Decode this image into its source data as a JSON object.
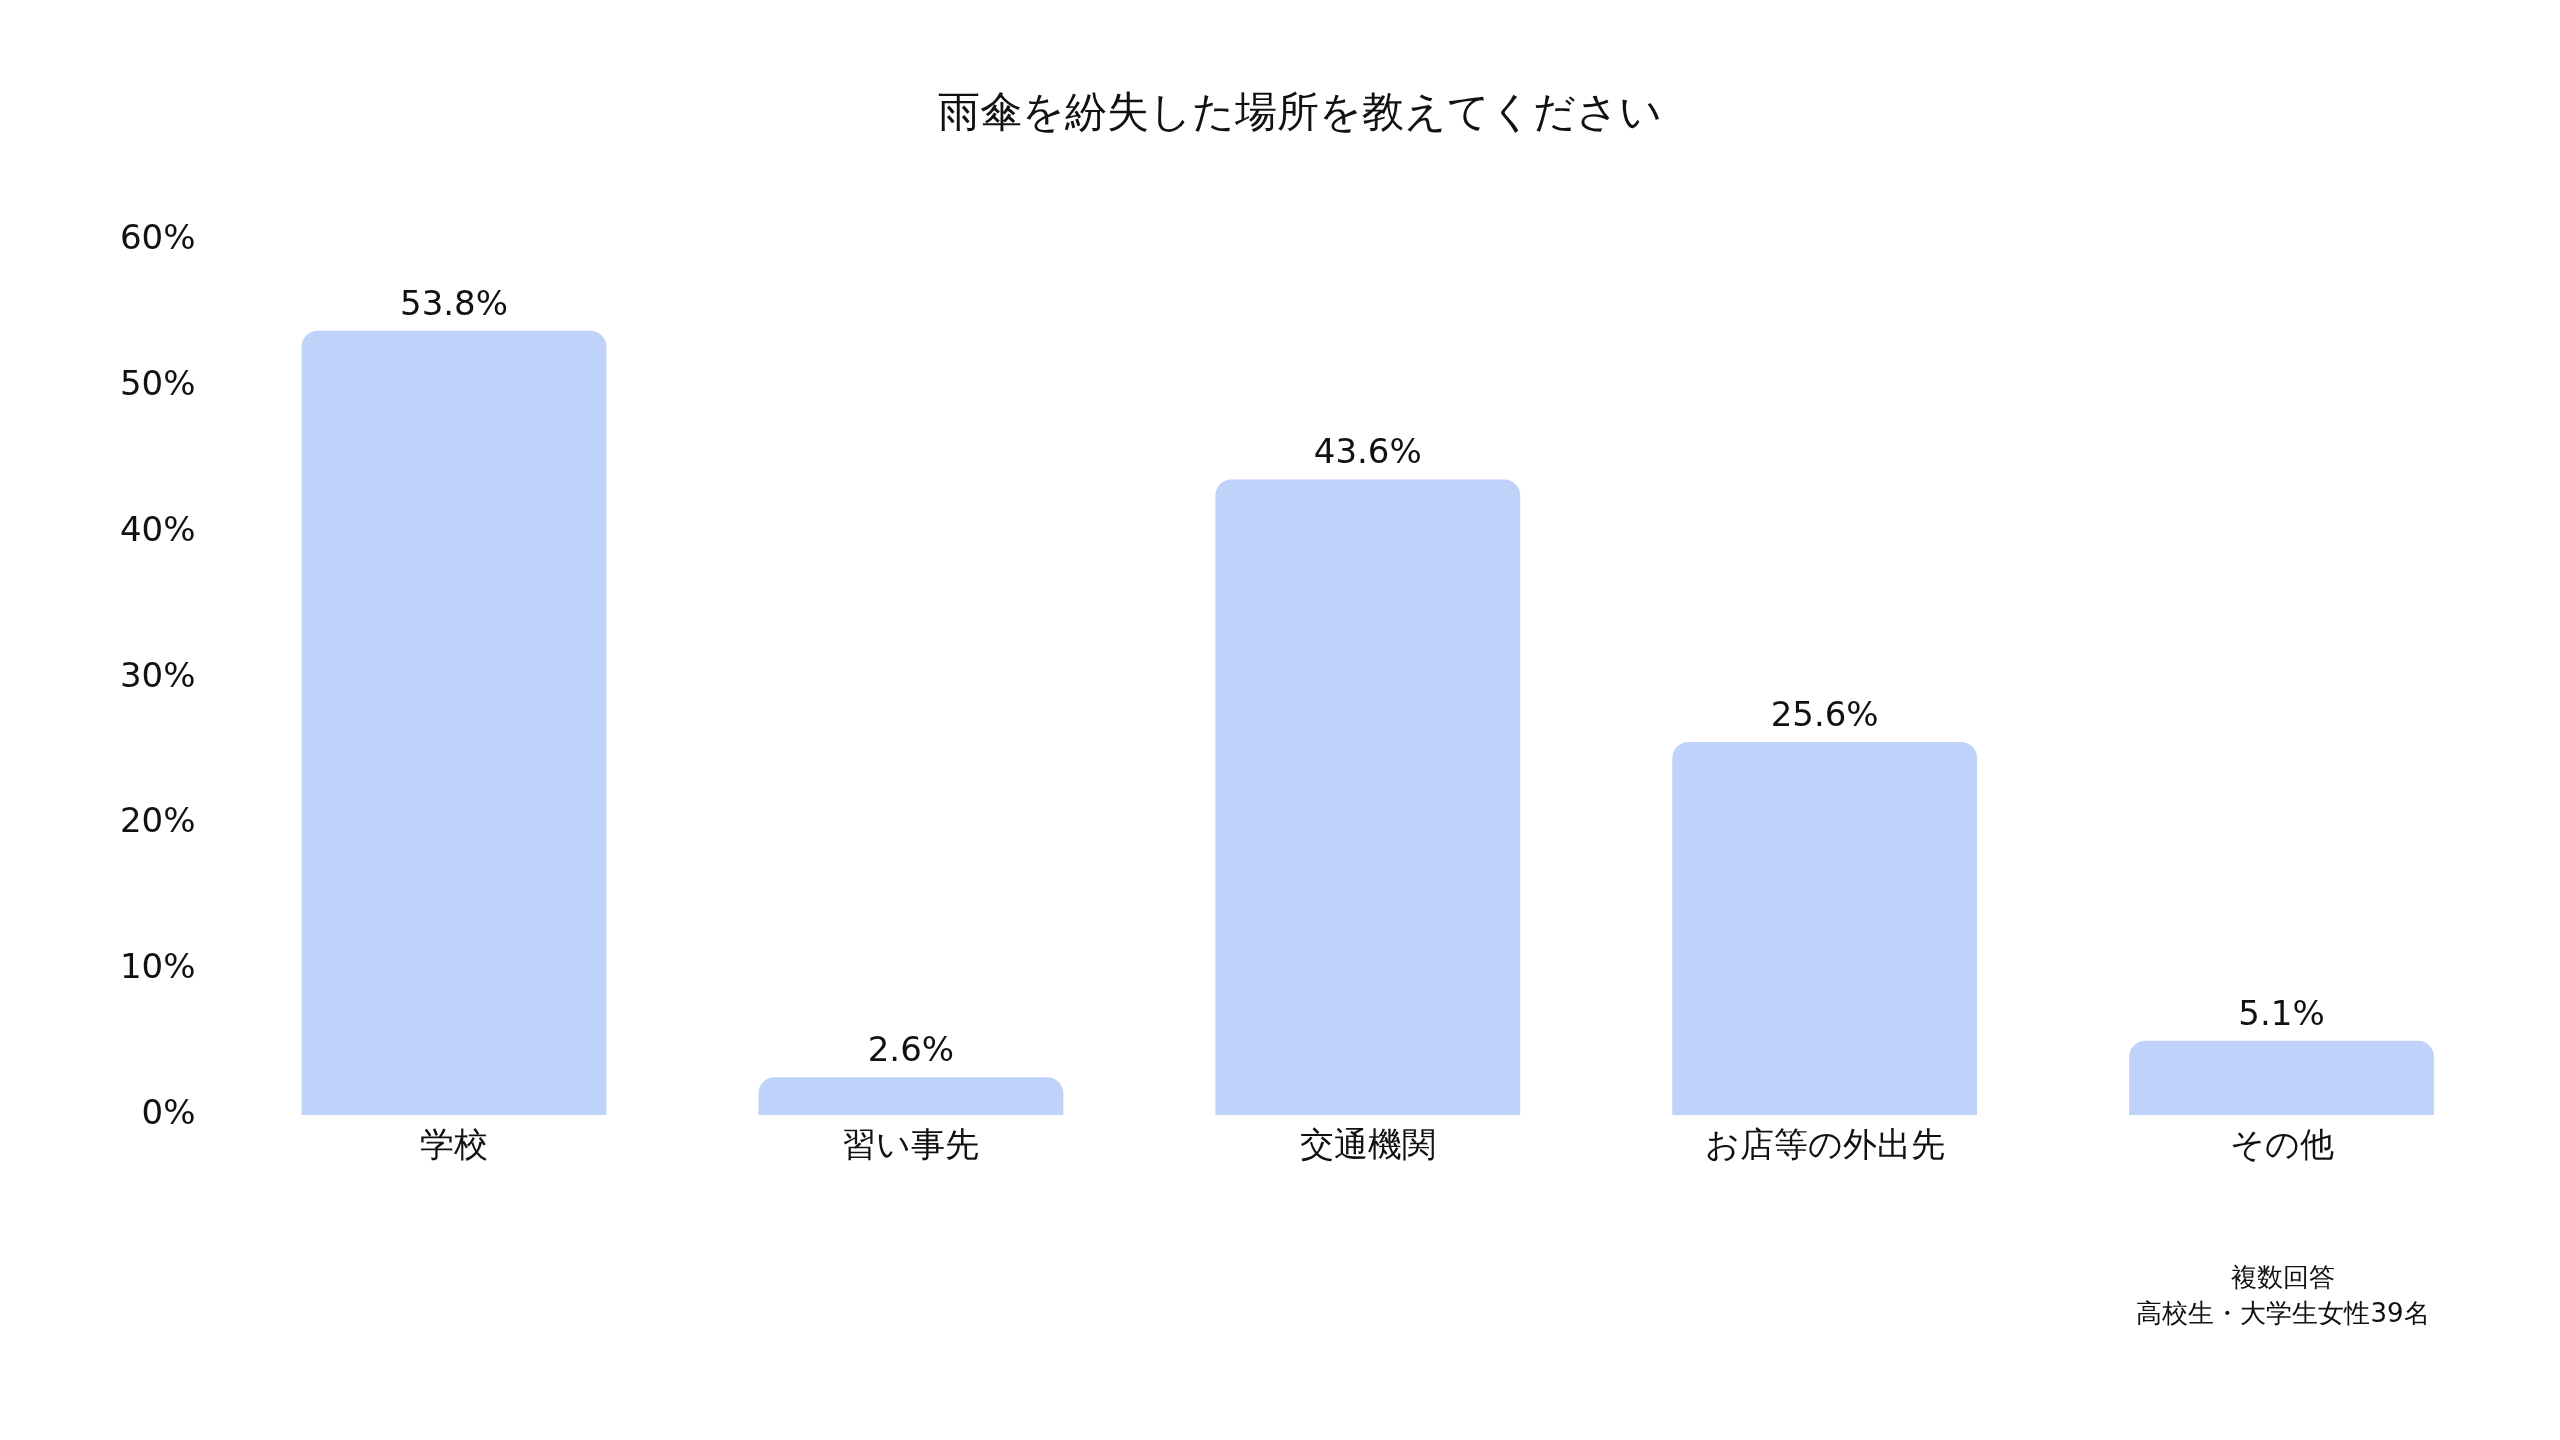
{
  "chart_data": {
    "type": "bar",
    "title": "雨傘を紛失した場所を教えてください",
    "categories": [
      "学校",
      "習い事先",
      "交通機関",
      "お店等の外出先",
      "その他"
    ],
    "values": [
      53.8,
      2.6,
      43.6,
      25.6,
      5.1
    ],
    "value_labels": [
      "53.8%",
      "2.6%",
      "43.6%",
      "25.6%",
      "5.1%"
    ],
    "color": "#bfd2fa",
    "ylim": [
      0,
      60
    ],
    "yticks": [
      {
        "value": 0,
        "label": "0%"
      },
      {
        "value": 10,
        "label": "10%"
      },
      {
        "value": 20,
        "label": "20%"
      },
      {
        "value": 30,
        "label": "30%"
      },
      {
        "value": 40,
        "label": "40%"
      },
      {
        "value": 50,
        "label": "50%"
      },
      {
        "value": 60,
        "label": "60%"
      }
    ],
    "grid": false,
    "annotations": [
      "複数回答",
      "高校生・大学生女性39名"
    ]
  }
}
